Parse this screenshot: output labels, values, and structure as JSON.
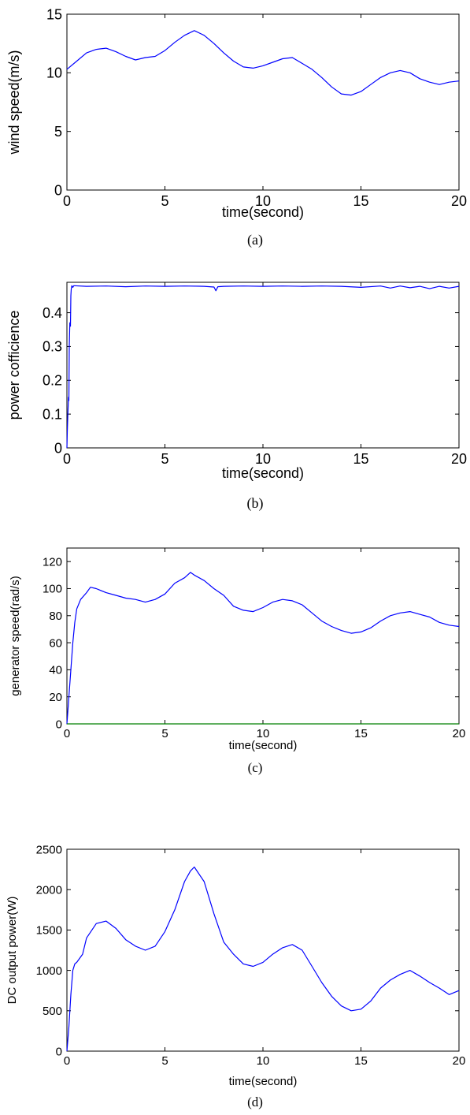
{
  "chart_data": [
    {
      "type": "line",
      "caption": "(a)",
      "xlabel": "time(second)",
      "ylabel": "wind speed(m/s)",
      "xlim": [
        0,
        20
      ],
      "ylim": [
        0,
        15
      ],
      "xticks": [
        0,
        5,
        10,
        15,
        20
      ],
      "yticks": [
        0,
        5,
        10,
        15
      ],
      "xtick_labels": [
        "0",
        "5",
        "10",
        "15",
        "20"
      ],
      "ytick_labels": [
        "0",
        "5",
        "10",
        "15"
      ],
      "series": [
        {
          "color": "#0000ff",
          "x": [
            0,
            0.5,
            1,
            1.5,
            2,
            2.5,
            3,
            3.5,
            4,
            4.5,
            5,
            5.5,
            6,
            6.5,
            7,
            7.5,
            8,
            8.5,
            9,
            9.5,
            10,
            10.5,
            11,
            11.5,
            12,
            12.5,
            13,
            13.5,
            14,
            14.5,
            15,
            15.5,
            16,
            16.5,
            17,
            17.5,
            18,
            18.5,
            19,
            19.5,
            20
          ],
          "y": [
            10.3,
            11.0,
            11.7,
            12.0,
            12.1,
            11.8,
            11.4,
            11.1,
            11.3,
            11.4,
            11.9,
            12.6,
            13.2,
            13.6,
            13.2,
            12.5,
            11.7,
            11.0,
            10.5,
            10.4,
            10.6,
            10.9,
            11.2,
            11.3,
            10.8,
            10.3,
            9.6,
            8.8,
            8.2,
            8.1,
            8.4,
            9.0,
            9.6,
            10.0,
            10.2,
            10.0,
            9.5,
            9.2,
            9.0,
            9.2,
            9.3
          ]
        }
      ]
    },
    {
      "type": "line",
      "caption": "(b)",
      "xlabel": "time(second)",
      "ylabel": "power cofficience",
      "xlim": [
        0,
        20
      ],
      "ylim": [
        0,
        0.49
      ],
      "xticks": [
        0,
        5,
        10,
        15,
        20
      ],
      "yticks": [
        0,
        0.1,
        0.2,
        0.3,
        0.4
      ],
      "xtick_labels": [
        "0",
        "5",
        "10",
        "15",
        "20"
      ],
      "ytick_labels": [
        "0",
        "0.1",
        "0.2",
        "0.3",
        "0.4"
      ],
      "series": [
        {
          "color": "#0000ff",
          "x": [
            0,
            0.02,
            0.05,
            0.08,
            0.1,
            0.12,
            0.15,
            0.18,
            0.2,
            0.22,
            0.25,
            0.3,
            0.35,
            1,
            2,
            3,
            4,
            5,
            6,
            7,
            7.5,
            7.6,
            7.7,
            8,
            9,
            10,
            11,
            12,
            13,
            14,
            15,
            16,
            16.5,
            17,
            17.5,
            18,
            18.5,
            19,
            19.5,
            20
          ],
          "y": [
            0.0,
            0.05,
            0.1,
            0.15,
            0.14,
            0.3,
            0.37,
            0.36,
            0.45,
            0.47,
            0.48,
            0.475,
            0.48,
            0.478,
            0.479,
            0.477,
            0.479,
            0.478,
            0.479,
            0.478,
            0.476,
            0.465,
            0.477,
            0.478,
            0.479,
            0.478,
            0.479,
            0.478,
            0.479,
            0.478,
            0.475,
            0.479,
            0.473,
            0.479,
            0.474,
            0.478,
            0.471,
            0.478,
            0.473,
            0.478
          ]
        }
      ]
    },
    {
      "type": "line",
      "caption": "(c)",
      "xlabel": "time(second)",
      "ylabel": "generator speed(rad/s)",
      "xlim": [
        0,
        20
      ],
      "ylim": [
        0,
        130
      ],
      "xticks": [
        0,
        5,
        10,
        15,
        20
      ],
      "yticks": [
        0,
        20,
        40,
        60,
        80,
        100,
        120
      ],
      "xtick_labels": [
        "0",
        "5",
        "10",
        "15",
        "20"
      ],
      "ytick_labels": [
        "0",
        "20",
        "40",
        "60",
        "80",
        "100",
        "120"
      ],
      "series": [
        {
          "color": "#0000ff",
          "x": [
            0,
            0.1,
            0.2,
            0.3,
            0.4,
            0.5,
            0.7,
            1,
            1.2,
            1.5,
            2,
            2.5,
            3,
            3.5,
            4,
            4.5,
            5,
            5.5,
            6,
            6.3,
            6.5,
            7,
            7.5,
            8,
            8.5,
            9,
            9.5,
            10,
            10.5,
            11,
            11.5,
            12,
            12.5,
            13,
            13.5,
            14,
            14.5,
            15,
            15.5,
            16,
            16.5,
            17,
            17.5,
            18,
            18.5,
            19,
            19.5,
            20
          ],
          "y": [
            0,
            20,
            40,
            60,
            75,
            85,
            92,
            97,
            101,
            100,
            97,
            95,
            93,
            92,
            90,
            92,
            96,
            104,
            108,
            112,
            110,
            106,
            100,
            95,
            87,
            84,
            83,
            86,
            90,
            92,
            91,
            88,
            82,
            76,
            72,
            69,
            67,
            68,
            71,
            76,
            80,
            82,
            83,
            81,
            79,
            75,
            73,
            72
          ]
        },
        {
          "color": "#008000",
          "x": [
            0,
            20
          ],
          "y": [
            0,
            0
          ]
        }
      ]
    },
    {
      "type": "line",
      "caption": "(d)",
      "xlabel": "time(second)",
      "ylabel": "DC output power(W)",
      "xlim": [
        0,
        20
      ],
      "ylim": [
        0,
        2500
      ],
      "xticks": [
        0,
        5,
        10,
        15,
        20
      ],
      "yticks": [
        0,
        500,
        1000,
        1500,
        2000,
        2500
      ],
      "xtick_labels": [
        "0",
        "5",
        "10",
        "15",
        "20"
      ],
      "ytick_labels": [
        "0",
        "500",
        "1000",
        "1500",
        "2000",
        "2500"
      ],
      "series": [
        {
          "color": "#0000ff",
          "x": [
            0,
            0.1,
            0.2,
            0.3,
            0.4,
            0.5,
            0.8,
            1,
            1.5,
            2,
            2.5,
            3,
            3.5,
            4,
            4.5,
            5,
            5.5,
            6,
            6.3,
            6.5,
            7,
            7.5,
            8,
            8.5,
            9,
            9.5,
            10,
            10.5,
            11,
            11.5,
            12,
            12.5,
            13,
            13.5,
            14,
            14.5,
            15,
            15.5,
            16,
            16.5,
            17,
            17.5,
            18,
            18.5,
            19,
            19.5,
            20
          ],
          "y": [
            0,
            300,
            700,
            1000,
            1080,
            1100,
            1200,
            1400,
            1580,
            1610,
            1520,
            1380,
            1300,
            1250,
            1300,
            1480,
            1750,
            2100,
            2230,
            2280,
            2100,
            1700,
            1350,
            1200,
            1080,
            1050,
            1100,
            1200,
            1280,
            1320,
            1250,
            1050,
            850,
            680,
            560,
            500,
            520,
            620,
            780,
            880,
            950,
            1000,
            930,
            850,
            780,
            700,
            750
          ]
        }
      ]
    }
  ]
}
